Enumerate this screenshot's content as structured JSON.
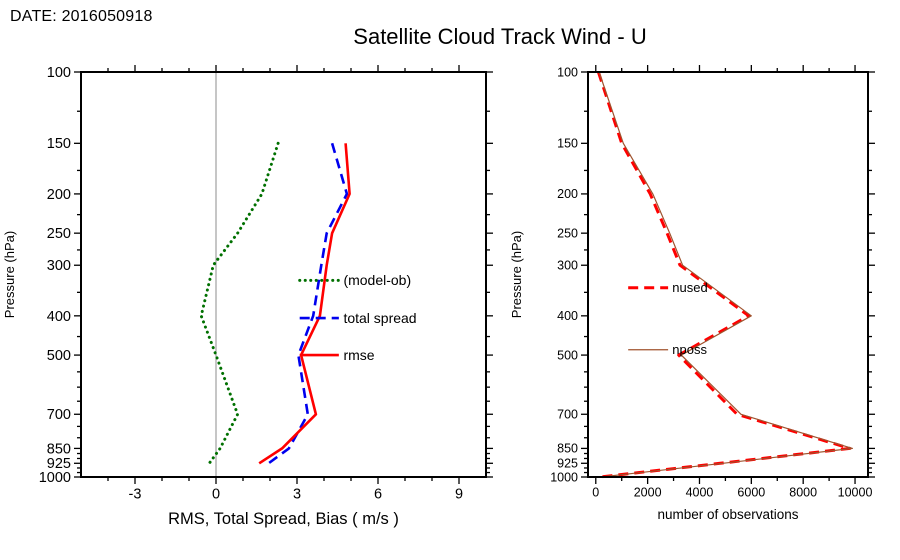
{
  "header": {
    "date_label": "DATE: 2016050918",
    "title": "Satellite Cloud Track Wind - U"
  },
  "colors": {
    "bias": "#007000",
    "total_spread": "#0000ee",
    "rmse": "#ff0000",
    "nused": "#ff0000",
    "nposs": "#a0522d",
    "zero_line": "#8c8c8c",
    "frame": "#000000"
  },
  "chart_data": [
    {
      "id": "errors",
      "type": "line",
      "xlabel": "RMS, Total Spread, Bias ( m/s )",
      "ylabel": "Pressure (hPa)",
      "xlim": [
        -5,
        10
      ],
      "xticks": [
        -3,
        0,
        3,
        6,
        9
      ],
      "x_minor_step": 1,
      "yscale": "log",
      "ylim": [
        100,
        1000
      ],
      "yticks": [
        100,
        150,
        200,
        250,
        300,
        400,
        500,
        700,
        850,
        925,
        1000
      ],
      "yminor_ticks": [
        125,
        175,
        225,
        275,
        350,
        450,
        550,
        600,
        650,
        750,
        800,
        875,
        900,
        950,
        975
      ],
      "zero_line": true,
      "grid": false,
      "series": [
        {
          "name": "(model-ob)",
          "color": "bias",
          "style": "dotted",
          "width": 3,
          "pressure": [
            150,
            200,
            250,
            300,
            400,
            500,
            700,
            850,
            925
          ],
          "values": [
            2.3,
            1.7,
            0.8,
            -0.1,
            -0.55,
            0.0,
            0.8,
            0.15,
            -0.25
          ]
        },
        {
          "name": "total spread",
          "color": "total_spread",
          "style": "dashed",
          "width": 2.6,
          "pressure": [
            150,
            200,
            250,
            300,
            400,
            500,
            700,
            850,
            925
          ],
          "values": [
            4.3,
            4.85,
            4.1,
            3.9,
            3.6,
            3.05,
            3.4,
            2.7,
            1.95
          ]
        },
        {
          "name": "rmse",
          "color": "rmse",
          "style": "solid",
          "width": 2.6,
          "pressure": [
            150,
            200,
            250,
            300,
            400,
            500,
            700,
            850,
            925
          ],
          "values": [
            4.8,
            4.95,
            4.3,
            4.1,
            3.85,
            3.15,
            3.7,
            2.45,
            1.6
          ]
        }
      ],
      "legend": {
        "sample_x": [
          3.1,
          4.55
        ],
        "text_x": 4.72,
        "rows": [
          {
            "series": 0,
            "pressure": 327
          },
          {
            "series": 1,
            "pressure": 405
          },
          {
            "series": 2,
            "pressure": 500
          }
        ]
      }
    },
    {
      "id": "counts",
      "type": "line",
      "xlabel": "number of observations",
      "ylabel": "Pressure (hPa)",
      "xlim": [
        -300,
        10500
      ],
      "xticks": [
        0,
        2000,
        4000,
        6000,
        8000,
        10000
      ],
      "x_minor_step": 1000,
      "yscale": "log",
      "ylim": [
        100,
        1000
      ],
      "yticks": [
        100,
        150,
        200,
        250,
        300,
        400,
        500,
        700,
        850,
        925,
        1000
      ],
      "yminor_ticks": [
        125,
        175,
        225,
        275,
        350,
        450,
        550,
        600,
        650,
        750,
        800,
        875,
        900,
        950,
        975
      ],
      "zero_line": false,
      "grid": false,
      "series": [
        {
          "name": "nused",
          "color": "nused",
          "style": "dashed",
          "width": 3,
          "pressure": [
            100,
            150,
            200,
            250,
            300,
            400,
            500,
            700,
            850,
            925,
            1000
          ],
          "values": [
            100,
            1000,
            2100,
            2750,
            3250,
            5900,
            3200,
            5450,
            9800,
            4800,
            150
          ]
        },
        {
          "name": "nposs",
          "color": "nposs",
          "style": "solid",
          "width": 1.2,
          "pressure": [
            100,
            150,
            200,
            250,
            300,
            400,
            500,
            700,
            850,
            925,
            1000
          ],
          "values": [
            130,
            1060,
            2200,
            2850,
            3350,
            6000,
            3300,
            5600,
            9900,
            4900,
            200
          ]
        }
      ],
      "legend": {
        "sample_x": [
          1250,
          2790
        ],
        "text_x": 2950,
        "rows": [
          {
            "series": 0,
            "pressure": 341
          },
          {
            "series": 1,
            "pressure": 485
          }
        ]
      }
    }
  ]
}
